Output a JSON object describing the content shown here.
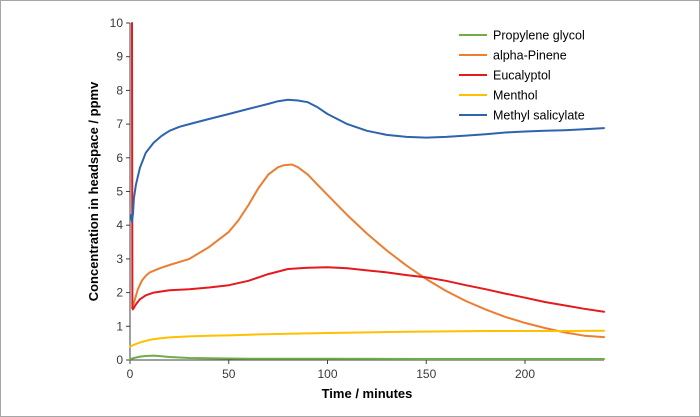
{
  "chart_data": {
    "type": "line",
    "title": "",
    "xlabel": "Time / minutes",
    "ylabel": "Concentration in headspace / ppmv",
    "xlim": [
      0,
      240
    ],
    "ylim": [
      0,
      10
    ],
    "xticks": [
      0,
      50,
      100,
      150,
      200
    ],
    "yticks": [
      0,
      1,
      2,
      3,
      4,
      5,
      6,
      7,
      8,
      9,
      10
    ],
    "grid": false,
    "legend_position": "top-right",
    "series": [
      {
        "name": "Propylene glycol",
        "color": "#70ad47",
        "x": [
          0,
          2,
          5,
          8,
          12,
          16,
          20,
          30,
          40,
          60,
          100,
          150,
          200,
          240
        ],
        "y": [
          0.02,
          0.06,
          0.1,
          0.12,
          0.13,
          0.11,
          0.09,
          0.06,
          0.05,
          0.04,
          0.04,
          0.03,
          0.03,
          0.03
        ]
      },
      {
        "name": "alpha-Pinene",
        "color": "#ed7d31",
        "x": [
          1,
          2,
          4,
          6,
          8,
          10,
          15,
          20,
          30,
          40,
          50,
          55,
          60,
          65,
          70,
          75,
          78,
          82,
          85,
          90,
          95,
          100,
          110,
          120,
          130,
          140,
          150,
          160,
          170,
          180,
          190,
          200,
          210,
          220,
          230,
          240
        ],
        "y": [
          1.55,
          1.7,
          2.1,
          2.35,
          2.5,
          2.6,
          2.72,
          2.82,
          3.0,
          3.35,
          3.8,
          4.15,
          4.6,
          5.1,
          5.5,
          5.72,
          5.78,
          5.8,
          5.72,
          5.5,
          5.2,
          4.9,
          4.3,
          3.75,
          3.25,
          2.8,
          2.4,
          2.05,
          1.75,
          1.5,
          1.28,
          1.1,
          0.95,
          0.82,
          0.72,
          0.68
        ]
      },
      {
        "name": "Eucalyptol",
        "color": "#e41a1c",
        "x": [
          1,
          1.1,
          1.2,
          1.4,
          2,
          3,
          5,
          8,
          12,
          20,
          30,
          40,
          50,
          60,
          70,
          80,
          90,
          100,
          110,
          120,
          130,
          140,
          150,
          160,
          170,
          180,
          190,
          200,
          210,
          220,
          230,
          240
        ],
        "y": [
          10,
          5.5,
          1.6,
          1.5,
          1.55,
          1.65,
          1.8,
          1.92,
          2.0,
          2.07,
          2.1,
          2.15,
          2.22,
          2.35,
          2.55,
          2.7,
          2.74,
          2.75,
          2.72,
          2.66,
          2.6,
          2.52,
          2.45,
          2.35,
          2.22,
          2.1,
          1.97,
          1.85,
          1.72,
          1.62,
          1.52,
          1.43
        ]
      },
      {
        "name": "Menthol",
        "color": "#ffc000",
        "x": [
          0,
          2,
          5,
          10,
          15,
          20,
          30,
          40,
          50,
          60,
          80,
          100,
          120,
          140,
          160,
          180,
          200,
          220,
          240
        ],
        "y": [
          0.4,
          0.45,
          0.52,
          0.6,
          0.64,
          0.67,
          0.7,
          0.72,
          0.73,
          0.75,
          0.78,
          0.8,
          0.82,
          0.84,
          0.85,
          0.86,
          0.86,
          0.86,
          0.87
        ]
      },
      {
        "name": "Methyl salicylate",
        "color": "#2e64ad",
        "x": [
          0.5,
          1,
          1.5,
          2,
          3,
          5,
          8,
          12,
          16,
          20,
          25,
          30,
          40,
          50,
          60,
          70,
          75,
          80,
          85,
          90,
          95,
          100,
          110,
          120,
          130,
          140,
          150,
          160,
          170,
          180,
          190,
          200,
          210,
          220,
          230,
          240
        ],
        "y": [
          4.3,
          4.1,
          4.35,
          4.8,
          5.2,
          5.7,
          6.15,
          6.45,
          6.65,
          6.8,
          6.92,
          7.0,
          7.15,
          7.3,
          7.45,
          7.6,
          7.68,
          7.72,
          7.7,
          7.65,
          7.5,
          7.3,
          7.0,
          6.8,
          6.68,
          6.62,
          6.6,
          6.62,
          6.66,
          6.7,
          6.75,
          6.78,
          6.8,
          6.82,
          6.85,
          6.88
        ]
      }
    ]
  }
}
